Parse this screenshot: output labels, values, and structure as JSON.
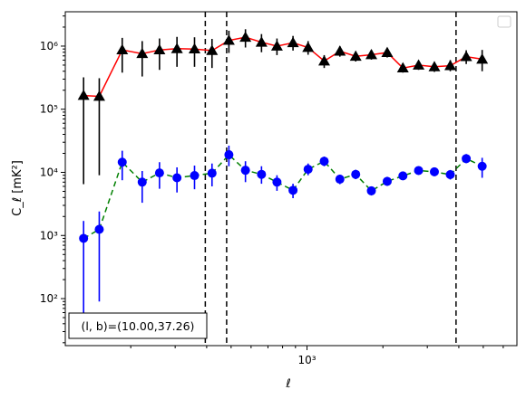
{
  "chart_data": {
    "type": "scatter",
    "title": "",
    "xlabel": "ℓ",
    "ylabel": "C_ℓ [mK²]",
    "xscale": "log",
    "yscale": "log",
    "xlim": [
      110,
      6800
    ],
    "ylim": [
      18,
      3500000
    ],
    "x_ticks": [
      {
        "value": 1000,
        "label": "10³"
      }
    ],
    "y_ticks": [
      {
        "value": 100,
        "label": "10²"
      },
      {
        "value": 1000,
        "label": "10³"
      },
      {
        "value": 10000,
        "label": "10⁴"
      },
      {
        "value": 100000,
        "label": "10⁵"
      },
      {
        "value": 1000000,
        "label": "10⁶"
      }
    ],
    "grid": false,
    "legend": "top-right",
    "legend_entries": [],
    "annotation": "(l, b)=(10.00,37.26)",
    "vlines": [
      395,
      480,
      3900
    ],
    "series": [
      {
        "marker": "triangle",
        "color": "#000000",
        "line_color": "#ff0000",
        "line_style": "solid",
        "points": [
          {
            "x": 130,
            "y": 165000,
            "lo": 6500,
            "hi": 320000
          },
          {
            "x": 150,
            "y": 160000,
            "lo": 9000,
            "hi": 310000
          },
          {
            "x": 185,
            "y": 870000,
            "lo": 380000,
            "hi": 1350000
          },
          {
            "x": 222,
            "y": 760000,
            "lo": 330000,
            "hi": 1200000
          },
          {
            "x": 260,
            "y": 870000,
            "lo": 420000,
            "hi": 1320000
          },
          {
            "x": 305,
            "y": 910000,
            "lo": 470000,
            "hi": 1400000
          },
          {
            "x": 358,
            "y": 900000,
            "lo": 470000,
            "hi": 1380000
          },
          {
            "x": 420,
            "y": 850000,
            "lo": 450000,
            "hi": 1300000
          },
          {
            "x": 490,
            "y": 1230000,
            "lo": 780000,
            "hi": 1750000
          },
          {
            "x": 570,
            "y": 1380000,
            "lo": 950000,
            "hi": 1850000
          },
          {
            "x": 660,
            "y": 1150000,
            "lo": 800000,
            "hi": 1550000
          },
          {
            "x": 760,
            "y": 1000000,
            "lo": 720000,
            "hi": 1320000
          },
          {
            "x": 880,
            "y": 1130000,
            "lo": 850000,
            "hi": 1450000
          },
          {
            "x": 1010,
            "y": 950000,
            "lo": 730000,
            "hi": 1200000
          },
          {
            "x": 1170,
            "y": 580000,
            "lo": 450000,
            "hi": 720000
          },
          {
            "x": 1350,
            "y": 830000,
            "lo": 680000,
            "hi": 1000000
          },
          {
            "x": 1560,
            "y": 690000,
            "lo": 570000,
            "hi": 830000
          },
          {
            "x": 1800,
            "y": 730000,
            "lo": 610000,
            "hi": 870000
          },
          {
            "x": 2080,
            "y": 790000,
            "lo": 660000,
            "hi": 930000
          },
          {
            "x": 2400,
            "y": 450000,
            "lo": 380000,
            "hi": 530000
          },
          {
            "x": 2770,
            "y": 500000,
            "lo": 420000,
            "hi": 590000
          },
          {
            "x": 3200,
            "y": 470000,
            "lo": 390000,
            "hi": 560000
          },
          {
            "x": 3700,
            "y": 490000,
            "lo": 400000,
            "hi": 600000
          },
          {
            "x": 4280,
            "y": 680000,
            "lo": 520000,
            "hi": 860000
          },
          {
            "x": 4950,
            "y": 620000,
            "lo": 400000,
            "hi": 870000
          }
        ]
      },
      {
        "marker": "circle",
        "color": "#0000ff",
        "line_color": "#008000",
        "line_style": "dashed",
        "points": [
          {
            "x": 130,
            "y": 900,
            "lo": 45,
            "hi": 1700
          },
          {
            "x": 150,
            "y": 1250,
            "lo": 90,
            "hi": 2400
          },
          {
            "x": 185,
            "y": 14500,
            "lo": 7500,
            "hi": 22000
          },
          {
            "x": 222,
            "y": 7000,
            "lo": 3300,
            "hi": 10500
          },
          {
            "x": 260,
            "y": 9800,
            "lo": 5500,
            "hi": 14500
          },
          {
            "x": 305,
            "y": 8200,
            "lo": 4800,
            "hi": 12000
          },
          {
            "x": 358,
            "y": 8900,
            "lo": 5400,
            "hi": 12800
          },
          {
            "x": 420,
            "y": 9700,
            "lo": 6000,
            "hi": 13800
          },
          {
            "x": 490,
            "y": 19000,
            "lo": 12500,
            "hi": 26500
          },
          {
            "x": 570,
            "y": 10800,
            "lo": 7000,
            "hi": 15000
          },
          {
            "x": 660,
            "y": 9300,
            "lo": 6600,
            "hi": 12500
          },
          {
            "x": 760,
            "y": 7000,
            "lo": 5100,
            "hi": 9000
          },
          {
            "x": 880,
            "y": 5200,
            "lo": 3900,
            "hi": 6600
          },
          {
            "x": 1010,
            "y": 11200,
            "lo": 9000,
            "hi": 13800
          },
          {
            "x": 1170,
            "y": 15000,
            "lo": 12500,
            "hi": 17800
          },
          {
            "x": 1350,
            "y": 7800,
            "lo": 6500,
            "hi": 9200
          },
          {
            "x": 1560,
            "y": 9300,
            "lo": 7800,
            "hi": 11000
          },
          {
            "x": 1800,
            "y": 5100,
            "lo": 4300,
            "hi": 6000
          },
          {
            "x": 2080,
            "y": 7200,
            "lo": 6100,
            "hi": 8500
          },
          {
            "x": 2400,
            "y": 8800,
            "lo": 7600,
            "hi": 10200
          },
          {
            "x": 2770,
            "y": 10700,
            "lo": 9200,
            "hi": 12300
          },
          {
            "x": 3200,
            "y": 10200,
            "lo": 8700,
            "hi": 11800
          },
          {
            "x": 3700,
            "y": 9200,
            "lo": 7700,
            "hi": 10900
          },
          {
            "x": 4280,
            "y": 16500,
            "lo": 14000,
            "hi": 19500
          },
          {
            "x": 4950,
            "y": 12500,
            "lo": 8200,
            "hi": 17000
          }
        ]
      }
    ]
  }
}
